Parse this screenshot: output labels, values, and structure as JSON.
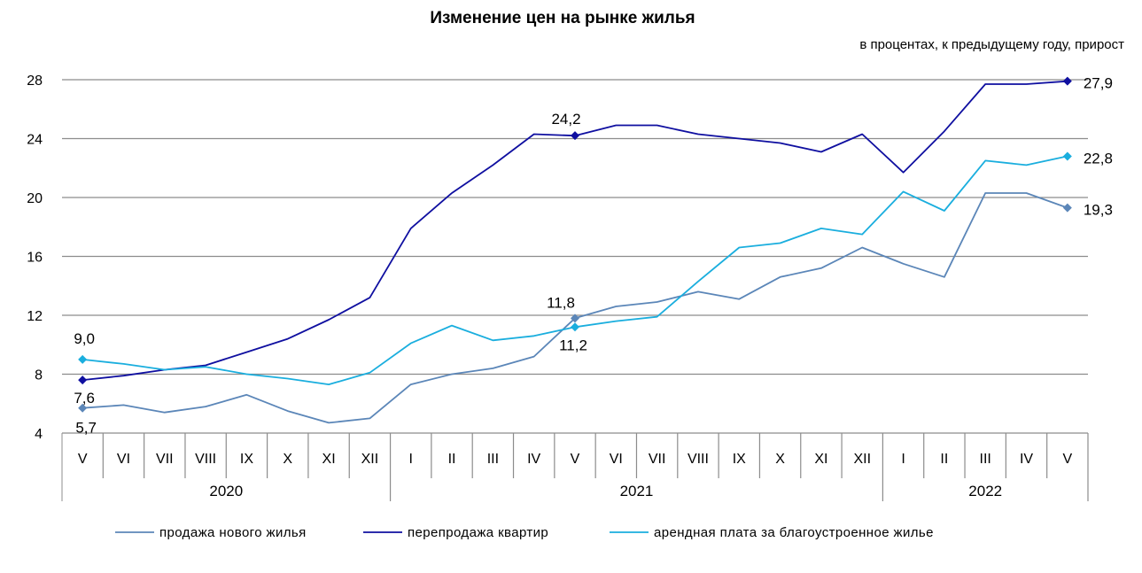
{
  "chart_data": {
    "type": "line",
    "title": "Изменение цен на рынке жилья",
    "subtitle": "в процентах, к предыдущему году, прирост",
    "ylim": [
      4,
      28
    ],
    "yticks": [
      "4",
      "8",
      "12",
      "16",
      "20",
      "24",
      "28"
    ],
    "grid": true,
    "legend_position": "bottom",
    "categories": [
      "V",
      "VI",
      "VII",
      "VIII",
      "IX",
      "X",
      "XI",
      "XII",
      "I",
      "II",
      "III",
      "IV",
      "V",
      "VI",
      "VII",
      "VIII",
      "IX",
      "X",
      "XI",
      "XII",
      "I",
      "II",
      "III",
      "IV",
      "V"
    ],
    "year_groups": [
      {
        "label": "2020",
        "count": 8
      },
      {
        "label": "2021",
        "count": 12
      },
      {
        "label": "2022",
        "count": 5
      }
    ],
    "series": [
      {
        "name": "продажа нового жилья",
        "color": "#5b86b8",
        "values": [
          5.7,
          5.9,
          5.4,
          5.8,
          6.6,
          5.5,
          4.7,
          5.0,
          7.3,
          8.0,
          8.4,
          9.2,
          11.8,
          12.6,
          12.9,
          13.6,
          13.1,
          14.6,
          15.2,
          16.6,
          15.5,
          14.6,
          20.3,
          20.3,
          19.3
        ],
        "labels": [
          {
            "index": 0,
            "text": "5,7"
          },
          {
            "index": 12,
            "text": "11,8"
          },
          {
            "index": 24,
            "text": "19,3"
          }
        ]
      },
      {
        "name": "перепродажа квартир",
        "color": "#0f0fa0",
        "values": [
          7.6,
          7.9,
          8.3,
          8.6,
          9.5,
          10.4,
          11.7,
          13.2,
          17.9,
          20.3,
          22.2,
          24.3,
          24.2,
          24.9,
          24.9,
          24.3,
          24.0,
          23.7,
          23.1,
          24.3,
          21.7,
          24.5,
          27.7,
          27.7,
          27.9
        ],
        "labels": [
          {
            "index": 0,
            "text": "7,6"
          },
          {
            "index": 12,
            "text": "24,2"
          },
          {
            "index": 24,
            "text": "27,9"
          }
        ]
      },
      {
        "name": "арендная плата за благоустроенное  жилье",
        "color": "#1aaede",
        "values": [
          9.0,
          8.7,
          8.3,
          8.5,
          8.0,
          7.7,
          7.3,
          8.1,
          10.1,
          11.3,
          10.3,
          10.6,
          11.2,
          11.6,
          11.9,
          14.3,
          16.6,
          16.9,
          17.9,
          17.5,
          20.4,
          19.1,
          22.5,
          22.2,
          22.8
        ],
        "labels": [
          {
            "index": 0,
            "text": "9,0"
          },
          {
            "index": 12,
            "text": "11,2"
          },
          {
            "index": 24,
            "text": "22,8"
          }
        ]
      }
    ]
  }
}
